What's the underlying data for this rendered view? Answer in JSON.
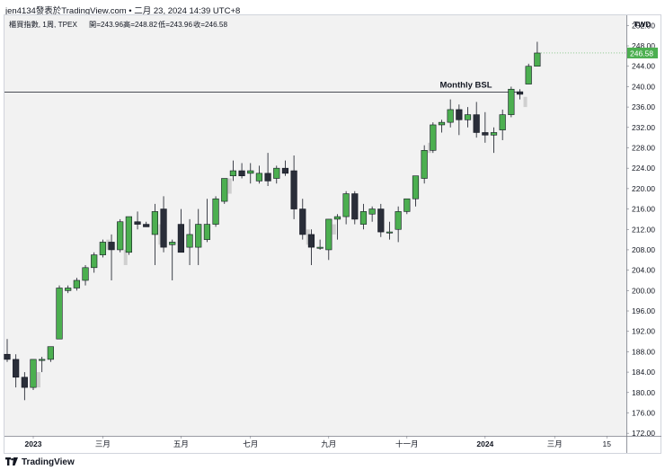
{
  "header": {
    "author_line": "jen4134發表於TradingView.com • 二月 23, 2024 14:39 UTC+8"
  },
  "legend": {
    "symbol": "櫃買指數, 1周, TPEX",
    "open": "開=243.96",
    "high": "高=248.82",
    "low": "低=243.96",
    "close": "收=246.58"
  },
  "currency": "TWD",
  "last_price_label": "246.58",
  "footer": {
    "brand": "TradingView"
  },
  "annotation": {
    "label": "Monthly BSL",
    "level": 238.9
  },
  "colors": {
    "up": "#4caf50",
    "down": "#2a2e39",
    "bg": "#f2f2f2",
    "ghost": "#cfcfcf",
    "price_tag": "#4caf50"
  },
  "chart_data": {
    "type": "candlestick",
    "y_ticks": [
      172,
      176,
      180,
      184,
      188,
      192,
      196,
      200,
      204,
      208,
      212,
      216,
      220,
      224,
      228,
      232,
      236,
      240,
      244,
      248,
      252
    ],
    "y_tick_labels": [
      "172.00",
      "176.00",
      "180.00",
      "184.00",
      "188.00",
      "192.00",
      "196.00",
      "200.00",
      "204.00",
      "208.00",
      "212.00",
      "216.00",
      "220.00",
      "224.00",
      "228.00",
      "232.00",
      "236.00",
      "240.00",
      "244.00",
      "248.00",
      "252.00"
    ],
    "ylim": [
      171.5,
      254
    ],
    "x_labels": [
      {
        "text": "2023",
        "week": 3,
        "bold": true
      },
      {
        "text": "三月",
        "week": 11
      },
      {
        "text": "五月",
        "week": 20
      },
      {
        "text": "七月",
        "week": 28
      },
      {
        "text": "九月",
        "week": 37
      },
      {
        "text": "十一月",
        "week": 46
      },
      {
        "text": "2024",
        "week": 55,
        "bold": true
      },
      {
        "text": "三月",
        "week": 63
      },
      {
        "text": "15",
        "week": 69
      }
    ],
    "candles": [
      {
        "o": 187.5,
        "h": 190.5,
        "l": 186,
        "c": 186.5
      },
      {
        "o": 186.5,
        "h": 187.5,
        "l": 181,
        "c": 183
      },
      {
        "o": 183,
        "h": 184,
        "l": 178.5,
        "c": 181
      },
      {
        "o": 181,
        "h": 186.5,
        "l": 180.5,
        "c": 186.5
      },
      {
        "o": 186.5,
        "h": 187,
        "l": 184,
        "c": 186.5
      },
      {
        "o": 186.5,
        "h": 189,
        "l": 186,
        "c": 189
      },
      {
        "o": 190.5,
        "h": 201,
        "l": 190.5,
        "c": 200.5
      },
      {
        "o": 200,
        "h": 201,
        "l": 199.5,
        "c": 200.5
      },
      {
        "o": 200.5,
        "h": 202.5,
        "l": 200,
        "c": 202
      },
      {
        "o": 202,
        "h": 205,
        "l": 201,
        "c": 204.5
      },
      {
        "o": 204.5,
        "h": 207.5,
        "l": 203.5,
        "c": 207
      },
      {
        "o": 207,
        "h": 210,
        "l": 206.5,
        "c": 209.5
      },
      {
        "o": 209.5,
        "h": 211,
        "l": 202,
        "c": 208
      },
      {
        "o": 208,
        "h": 214,
        "l": 207.5,
        "c": 213.5
      },
      {
        "o": 207.5,
        "h": 214.5,
        "l": 207,
        "c": 214.5
      },
      {
        "o": 213.5,
        "h": 215.5,
        "l": 212,
        "c": 213
      },
      {
        "o": 213,
        "h": 213.5,
        "l": 212.5,
        "c": 212.5
      },
      {
        "o": 211,
        "h": 217,
        "l": 205,
        "c": 215.5
      },
      {
        "o": 216,
        "h": 218.5,
        "l": 207.5,
        "c": 208.5
      },
      {
        "o": 209,
        "h": 210,
        "l": 202,
        "c": 209.5
      },
      {
        "o": 213,
        "h": 216,
        "l": 207.5,
        "c": 207.5
      },
      {
        "o": 208.5,
        "h": 214,
        "l": 205,
        "c": 211
      },
      {
        "o": 208.5,
        "h": 216,
        "l": 205,
        "c": 213
      },
      {
        "o": 210,
        "h": 218,
        "l": 209.5,
        "c": 213
      },
      {
        "o": 213,
        "h": 218.5,
        "l": 212.5,
        "c": 218
      },
      {
        "o": 217.5,
        "h": 222,
        "l": 217,
        "c": 222
      },
      {
        "o": 222.5,
        "h": 225.5,
        "l": 221.5,
        "c": 223.5
      },
      {
        "o": 223.5,
        "h": 225,
        "l": 222,
        "c": 222.5
      },
      {
        "o": 223,
        "h": 225,
        "l": 221,
        "c": 223.5
      },
      {
        "o": 221.5,
        "h": 224.5,
        "l": 221,
        "c": 223
      },
      {
        "o": 223,
        "h": 227,
        "l": 220.5,
        "c": 221.5
      },
      {
        "o": 222,
        "h": 224.5,
        "l": 221,
        "c": 224
      },
      {
        "o": 224,
        "h": 225.5,
        "l": 222.5,
        "c": 223
      },
      {
        "o": 223.5,
        "h": 226.5,
        "l": 214,
        "c": 216
      },
      {
        "o": 216,
        "h": 218,
        "l": 210,
        "c": 211
      },
      {
        "o": 211,
        "h": 212,
        "l": 205,
        "c": 208.5
      },
      {
        "o": 208.5,
        "h": 210,
        "l": 208,
        "c": 208.5
      },
      {
        "o": 208,
        "h": 214,
        "l": 206,
        "c": 214
      },
      {
        "o": 214,
        "h": 215,
        "l": 210,
        "c": 214.5
      },
      {
        "o": 214.5,
        "h": 219.5,
        "l": 213,
        "c": 219
      },
      {
        "o": 219,
        "h": 219.5,
        "l": 213,
        "c": 214
      },
      {
        "o": 213,
        "h": 217,
        "l": 212,
        "c": 215.5
      },
      {
        "o": 215,
        "h": 216.5,
        "l": 213.5,
        "c": 216
      },
      {
        "o": 216,
        "h": 217,
        "l": 210.5,
        "c": 211.5
      },
      {
        "o": 211.5,
        "h": 213.5,
        "l": 210,
        "c": 211.5
      },
      {
        "o": 212,
        "h": 216.5,
        "l": 209.5,
        "c": 215.5
      },
      {
        "o": 215.5,
        "h": 218,
        "l": 215,
        "c": 218
      },
      {
        "o": 218,
        "h": 222.5,
        "l": 216.5,
        "c": 222.5
      },
      {
        "o": 222,
        "h": 228.5,
        "l": 221,
        "c": 227.5
      },
      {
        "o": 227.5,
        "h": 233,
        "l": 227,
        "c": 232.5
      },
      {
        "o": 232.5,
        "h": 233.5,
        "l": 231,
        "c": 233
      },
      {
        "o": 233,
        "h": 237.5,
        "l": 232,
        "c": 235.5
      },
      {
        "o": 235.5,
        "h": 236.5,
        "l": 230.5,
        "c": 233.5
      },
      {
        "o": 233.5,
        "h": 236,
        "l": 232,
        "c": 234.5
      },
      {
        "o": 234.5,
        "h": 237,
        "l": 230,
        "c": 231
      },
      {
        "o": 231,
        "h": 235,
        "l": 229,
        "c": 230.5
      },
      {
        "o": 230.5,
        "h": 232,
        "l": 227,
        "c": 231
      },
      {
        "o": 231.5,
        "h": 235.5,
        "l": 229.5,
        "c": 234.5
      },
      {
        "o": 234.5,
        "h": 240,
        "l": 234,
        "c": 239.5
      },
      {
        "o": 239,
        "h": 239.5,
        "l": 237.5,
        "c": 238.5
      },
      {
        "o": 240.5,
        "h": 244.5,
        "l": 240.5,
        "c": 244
      },
      {
        "o": 244,
        "h": 248.8,
        "l": 244,
        "c": 246.6
      }
    ],
    "ghost_bars": [
      {
        "i": 3,
        "lo": 181,
        "hi": 184
      },
      {
        "i": 11,
        "lo": 208,
        "hi": 210
      },
      {
        "i": 13,
        "lo": 205,
        "hi": 208
      },
      {
        "i": 17,
        "lo": 209,
        "hi": 213
      },
      {
        "i": 25,
        "lo": 219,
        "hi": 222
      },
      {
        "i": 34,
        "lo": 209,
        "hi": 212
      },
      {
        "i": 37,
        "lo": 211,
        "hi": 213
      },
      {
        "i": 48,
        "lo": 227,
        "hi": 229
      },
      {
        "i": 59,
        "lo": 236,
        "hi": 238
      }
    ]
  }
}
